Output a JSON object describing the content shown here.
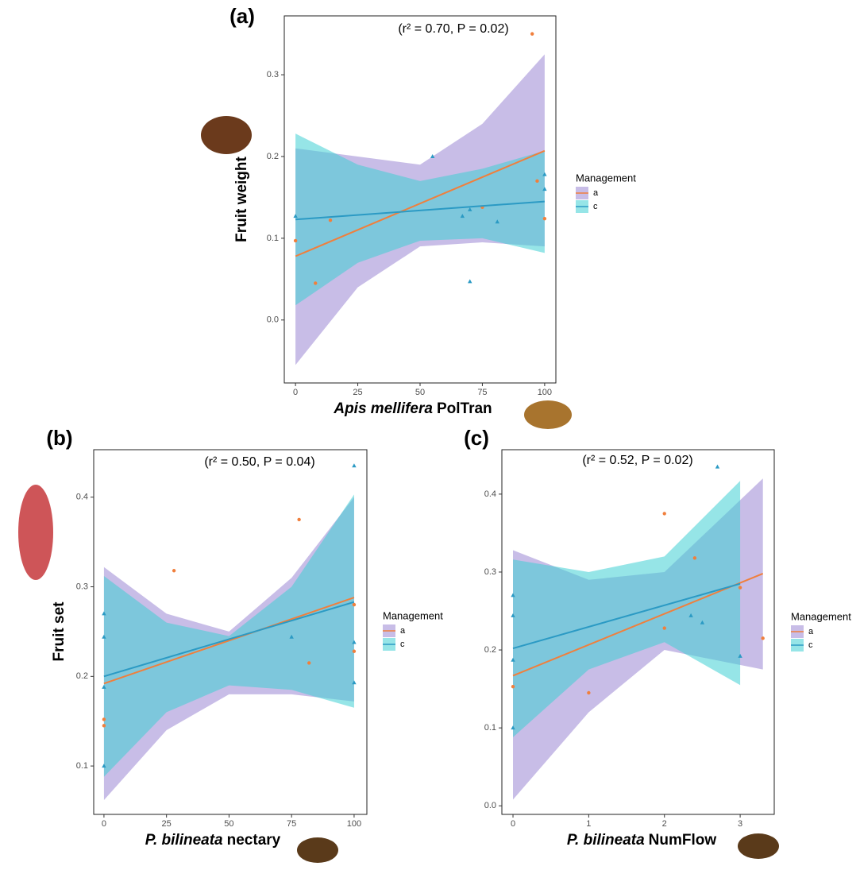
{
  "chart_data": [
    {
      "type": "scatter",
      "panel_label": "(a)",
      "annotation": "(r² = 0.70, P = 0.02)",
      "xlabel": {
        "italic": "Apis mellifera",
        "text": "PolTran"
      },
      "ylabel": "Fruit weight",
      "legend_title": "Management",
      "xlim": [
        -4.5,
        104.5
      ],
      "ylim": [
        -0.077,
        0.372
      ],
      "xticks": [
        0,
        25,
        50,
        75,
        100
      ],
      "yticks": [
        {
          "value": 0,
          "label": "0.0"
        },
        0.1,
        0.2,
        0.3
      ],
      "series": [
        {
          "name": "a",
          "color": "#f07f3c",
          "band_color": "#9b87d4",
          "marker": "circle",
          "x": [
            0,
            8,
            14,
            75,
            95,
            97,
            100
          ],
          "y": [
            0.097,
            0.045,
            0.122,
            0.138,
            0.35,
            0.17,
            0.124
          ],
          "fit_x": [
            0,
            100
          ],
          "fit_y": [
            0.078,
            0.207
          ],
          "band_x": [
            0,
            25,
            50,
            75,
            100
          ],
          "band_lower": [
            -0.055,
            0.04,
            0.09,
            0.095,
            0.09
          ],
          "band_upper": [
            0.21,
            0.2,
            0.19,
            0.24,
            0.325
          ]
        },
        {
          "name": "c",
          "color": "#2b9ac4",
          "band_color": "#3fd0d4",
          "marker": "triangle",
          "x": [
            0,
            55,
            67,
            70,
            70,
            81,
            100,
            100
          ],
          "y": [
            0.127,
            0.2,
            0.127,
            0.047,
            0.135,
            0.12,
            0.178,
            0.16
          ],
          "fit_x": [
            0,
            100
          ],
          "fit_y": [
            0.123,
            0.145
          ],
          "band_x": [
            0,
            25,
            50,
            75,
            100
          ],
          "band_lower": [
            0.018,
            0.07,
            0.097,
            0.1,
            0.082
          ],
          "band_upper": [
            0.228,
            0.19,
            0.17,
            0.185,
            0.207
          ]
        }
      ]
    },
    {
      "type": "scatter",
      "panel_label": "(b)",
      "annotation": "(r² = 0.50, P = 0.04)",
      "xlabel": {
        "italic": "P. bilineata",
        "text": "nectary"
      },
      "ylabel": "Fruit set",
      "legend_title": "Management",
      "xlim": [
        -4.1,
        105.1
      ],
      "ylim": [
        0.046,
        0.453
      ],
      "xticks": [
        0,
        25,
        50,
        75,
        100
      ],
      "yticks": [
        0.1,
        0.2,
        0.3,
        0.4
      ],
      "series": [
        {
          "name": "a",
          "color": "#f07f3c",
          "band_color": "#9b87d4",
          "marker": "circle",
          "x": [
            0,
            0,
            28,
            78,
            82,
            100,
            100
          ],
          "y": [
            0.152,
            0.145,
            0.318,
            0.375,
            0.215,
            0.28,
            0.228
          ],
          "fit_x": [
            0,
            100
          ],
          "fit_y": [
            0.192,
            0.288
          ],
          "band_x": [
            0,
            25,
            50,
            75,
            100
          ],
          "band_lower": [
            0.062,
            0.14,
            0.18,
            0.18,
            0.172
          ],
          "band_upper": [
            0.322,
            0.27,
            0.25,
            0.31,
            0.4
          ]
        },
        {
          "name": "c",
          "color": "#2b9ac4",
          "band_color": "#3fd0d4",
          "marker": "triangle",
          "x": [
            0,
            0,
            0,
            0,
            75,
            100,
            100,
            100
          ],
          "y": [
            0.27,
            0.244,
            0.188,
            0.1,
            0.244,
            0.435,
            0.238,
            0.193
          ],
          "fit_x": [
            0,
            100
          ],
          "fit_y": [
            0.2,
            0.283
          ],
          "band_x": [
            0,
            25,
            50,
            75,
            100
          ],
          "band_lower": [
            0.088,
            0.16,
            0.19,
            0.185,
            0.165
          ],
          "band_upper": [
            0.312,
            0.26,
            0.245,
            0.3,
            0.403
          ]
        }
      ]
    },
    {
      "type": "scatter",
      "panel_label": "(c)",
      "annotation": "(r² = 0.52, P = 0.02)",
      "xlabel": {
        "italic": "P. bilineata",
        "text": "NumFlow"
      },
      "legend_title": "Management",
      "xlim": [
        -0.147,
        3.45
      ],
      "ylim": [
        -0.011,
        0.457
      ],
      "xticks": [
        0,
        1,
        2,
        3
      ],
      "yticks": [
        {
          "value": 0,
          "label": "0.0"
        },
        0.1,
        0.2,
        0.3,
        0.4
      ],
      "series": [
        {
          "name": "a",
          "color": "#f07f3c",
          "band_color": "#9b87d4",
          "marker": "circle",
          "x": [
            0,
            1,
            2,
            2,
            2.4,
            3,
            3.3
          ],
          "y": [
            0.153,
            0.145,
            0.375,
            0.228,
            0.318,
            0.28,
            0.215
          ],
          "fit_x": [
            0,
            3.3
          ],
          "fit_y": [
            0.167,
            0.298
          ],
          "band_x": [
            0,
            1,
            2,
            3.3
          ],
          "band_lower": [
            0.008,
            0.12,
            0.2,
            0.175
          ],
          "band_upper": [
            0.328,
            0.29,
            0.3,
            0.42
          ]
        },
        {
          "name": "c",
          "color": "#2b9ac4",
          "band_color": "#3fd0d4",
          "marker": "triangle",
          "x": [
            0,
            0,
            0,
            0,
            2.35,
            2.5,
            2.7,
            3
          ],
          "y": [
            0.27,
            0.244,
            0.187,
            0.1,
            0.244,
            0.235,
            0.435,
            0.192
          ],
          "fit_x": [
            0,
            3
          ],
          "fit_y": [
            0.202,
            0.285
          ],
          "band_x": [
            0,
            1,
            2,
            3
          ],
          "band_lower": [
            0.088,
            0.175,
            0.21,
            0.155
          ],
          "band_upper": [
            0.316,
            0.3,
            0.32,
            0.417
          ]
        }
      ]
    }
  ]
}
